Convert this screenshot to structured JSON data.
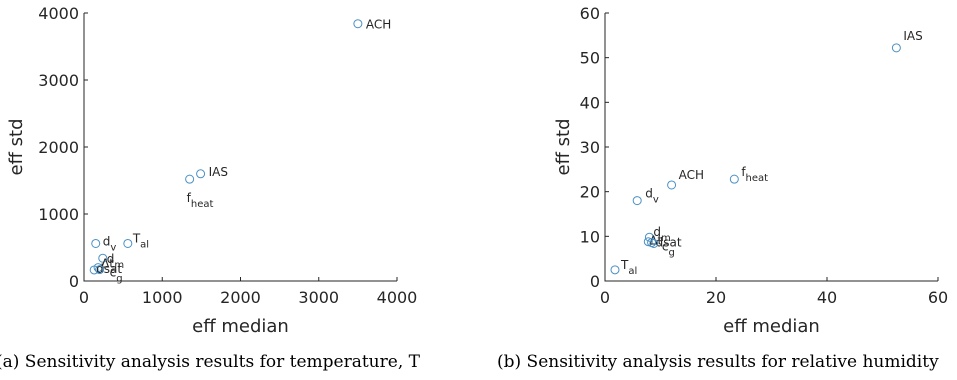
{
  "chart_data": [
    {
      "type": "scatter",
      "xlabel": "eff median",
      "ylabel": "eff std",
      "xlim": [
        0,
        4000
      ],
      "ylim": [
        0,
        4000
      ],
      "xticks": [
        0,
        1000,
        2000,
        3000,
        4000
      ],
      "yticks": [
        0,
        1000,
        2000,
        3000,
        4000
      ],
      "grid": false,
      "marker_color": "#4a90c4",
      "points": [
        {
          "label": "ACH",
          "sub": "",
          "x": 3500,
          "y": 3840
        },
        {
          "label": "IAS",
          "sub": "",
          "x": 1490,
          "y": 1600
        },
        {
          "label": "f",
          "sub": "heat",
          "x": 1350,
          "y": 1520
        },
        {
          "label": "d",
          "sub": "v",
          "x": 150,
          "y": 560
        },
        {
          "label": "T",
          "sub": "al",
          "x": 560,
          "y": 560
        },
        {
          "label": "d",
          "sub": "m",
          "x": 240,
          "y": 340
        },
        {
          "label": "Δt",
          "sub": "",
          "x": 180,
          "y": 200
        },
        {
          "label": "dsat",
          "sub": "",
          "x": 130,
          "y": 165
        },
        {
          "label": "c",
          "sub": "g",
          "x": 200,
          "y": 170
        }
      ],
      "caption": "(a) Sensitivity analysis results for temperature, T"
    },
    {
      "type": "scatter",
      "xlabel": "eff median",
      "ylabel": "eff std",
      "xlim": [
        0,
        60
      ],
      "ylim": [
        0,
        60
      ],
      "xticks": [
        0,
        20,
        40,
        60
      ],
      "yticks": [
        0,
        10,
        20,
        30,
        40,
        50,
        60
      ],
      "grid": false,
      "marker_color": "#4a90c4",
      "points": [
        {
          "label": "IAS",
          "sub": "",
          "x": 52.5,
          "y": 52.2
        },
        {
          "label": "ACH",
          "sub": "",
          "x": 12,
          "y": 21.5
        },
        {
          "label": "f",
          "sub": "heat",
          "x": 23.3,
          "y": 22.8
        },
        {
          "label": "d",
          "sub": "v",
          "x": 5.8,
          "y": 18
        },
        {
          "label": "d",
          "sub": "m",
          "x": 8,
          "y": 9.8
        },
        {
          "label": "Δt",
          "sub": "",
          "x": 7.8,
          "y": 8.8
        },
        {
          "label": "dsat",
          "sub": "",
          "x": 8.4,
          "y": 8.6
        },
        {
          "label": "c",
          "sub": "g",
          "x": 8.8,
          "y": 8.4
        },
        {
          "label": "T",
          "sub": "al",
          "x": 1.8,
          "y": 2.5
        }
      ],
      "caption": "(b) Sensitivity analysis results for relative humidity"
    }
  ]
}
